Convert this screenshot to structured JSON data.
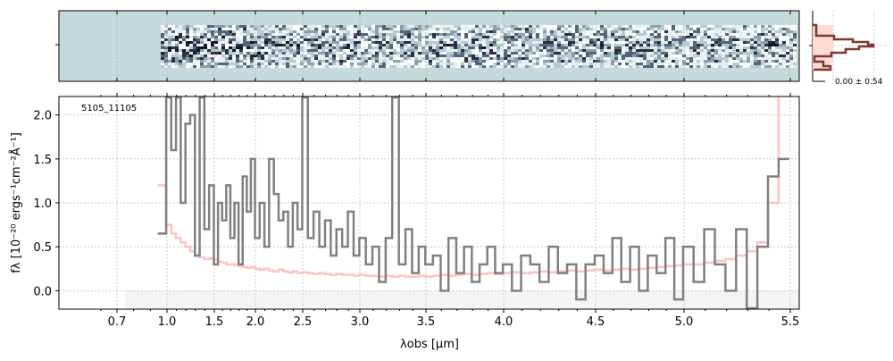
{
  "colors": {
    "flux": "#808080",
    "error": "#ffb3b3",
    "image_bg": "#c5dbdb",
    "hist_line": "#7a3b2e",
    "hist_fill": "#ffd7cc"
  },
  "image_panel": {
    "histogram_label": "0.00 ± 0.54"
  },
  "chart_data": {
    "type": "line",
    "title": "",
    "annotation": "5105_11105",
    "xlabel": "λobs [μm]",
    "ylabel": "fλ [10⁻²⁰ ergs⁻¹cm⁻²Å⁻¹]",
    "ylim": [
      -0.21,
      2.21
    ],
    "xlim": [
      0.5,
      5.52
    ],
    "grid": true,
    "x_ticks": [
      {
        "value": 0.7,
        "label": "0.7"
      },
      {
        "value": 1.0,
        "label": "1.0"
      },
      {
        "value": 1.5,
        "label": "1.5"
      },
      {
        "value": 2.0,
        "label": "2.0"
      },
      {
        "value": 2.5,
        "label": "2.5"
      },
      {
        "value": 3.0,
        "label": "3.0"
      },
      {
        "value": 3.5,
        "label": "3.5"
      },
      {
        "value": 4.0,
        "label": "4.0"
      },
      {
        "value": 4.5,
        "label": "4.5"
      },
      {
        "value": 5.0,
        "label": "5.0"
      },
      {
        "value": 5.5,
        "label": "5.5"
      }
    ],
    "y_ticks": [
      {
        "value": 0.0,
        "label": "0.0"
      },
      {
        "value": 0.5,
        "label": "0.5"
      },
      {
        "value": 1.0,
        "label": "1.0"
      },
      {
        "value": 1.5,
        "label": "1.5"
      },
      {
        "value": 2.0,
        "label": "2.0"
      }
    ],
    "shaded_region": {
      "x": [
        0.75,
        5.52
      ],
      "y": [
        -0.21,
        0.0
      ]
    },
    "x": [
      0.97,
      1.02,
      1.07,
      1.12,
      1.17,
      1.22,
      1.27,
      1.32,
      1.37,
      1.42,
      1.47,
      1.52,
      1.57,
      1.62,
      1.67,
      1.72,
      1.77,
      1.82,
      1.87,
      1.92,
      1.97,
      2.02,
      2.07,
      2.12,
      2.17,
      2.22,
      2.27,
      2.32,
      2.37,
      2.42,
      2.47,
      2.52,
      2.57,
      2.62,
      2.67,
      2.72,
      2.77,
      2.82,
      2.87,
      2.92,
      2.97,
      3.02,
      3.07,
      3.12,
      3.17,
      3.22,
      3.27,
      3.32,
      3.37,
      3.42,
      3.47,
      3.52,
      3.57,
      3.62,
      3.67,
      3.72,
      3.77,
      3.82,
      3.87,
      3.92,
      3.97,
      4.02,
      4.07,
      4.12,
      4.17,
      4.22,
      4.27,
      4.32,
      4.37,
      4.42,
      4.47,
      4.52,
      4.57,
      4.62,
      4.67,
      4.72,
      4.77,
      4.82,
      4.87,
      4.92,
      4.97,
      5.02,
      5.07,
      5.12,
      5.17,
      5.22,
      5.27,
      5.32,
      5.37,
      5.42,
      5.47
    ],
    "series": [
      {
        "name": "flux",
        "values": [
          0.65,
          2.2,
          1.6,
          2.2,
          1.0,
          1.9,
          2.0,
          0.4,
          2.2,
          0.7,
          1.2,
          0.3,
          1.0,
          0.8,
          1.2,
          0.6,
          1.0,
          0.3,
          1.3,
          0.9,
          1.5,
          0.6,
          1.0,
          0.5,
          1.5,
          1.1,
          0.8,
          0.9,
          0.5,
          1.0,
          0.7,
          2.2,
          0.6,
          0.9,
          0.5,
          0.8,
          0.4,
          0.7,
          0.5,
          0.9,
          0.4,
          0.6,
          0.3,
          0.5,
          0.1,
          0.6,
          2.2,
          0.3,
          0.7,
          0.2,
          0.5,
          0.3,
          0.4,
          0.0,
          0.6,
          0.2,
          0.5,
          0.1,
          0.3,
          0.5,
          0.2,
          0.3,
          0.0,
          0.4,
          0.3,
          0.1,
          0.5,
          0.2,
          0.3,
          -0.1,
          0.3,
          0.4,
          0.2,
          0.6,
          0.1,
          0.5,
          0.0,
          0.4,
          0.2,
          0.6,
          -0.1,
          0.5,
          0.1,
          0.7,
          0.3,
          0.0,
          0.7,
          -0.2,
          0.5,
          1.3,
          1.5
        ]
      },
      {
        "name": "error",
        "values": [
          1.2,
          0.75,
          0.65,
          0.6,
          0.55,
          0.5,
          0.45,
          0.4,
          0.38,
          0.36,
          0.37,
          0.35,
          0.33,
          0.32,
          0.3,
          0.3,
          0.29,
          0.28,
          0.27,
          0.26,
          0.27,
          0.25,
          0.24,
          0.25,
          0.23,
          0.22,
          0.24,
          0.22,
          0.21,
          0.22,
          0.2,
          0.21,
          0.2,
          0.19,
          0.2,
          0.19,
          0.18,
          0.19,
          0.18,
          0.18,
          0.17,
          0.18,
          0.17,
          0.17,
          0.16,
          0.17,
          0.16,
          0.17,
          0.16,
          0.16,
          0.17,
          0.16,
          0.17,
          0.18,
          0.17,
          0.18,
          0.19,
          0.18,
          0.19,
          0.2,
          0.19,
          0.2,
          0.21,
          0.2,
          0.21,
          0.22,
          0.21,
          0.22,
          0.23,
          0.22,
          0.23,
          0.24,
          0.23,
          0.24,
          0.25,
          0.24,
          0.25,
          0.26,
          0.27,
          0.28,
          0.29,
          0.3,
          0.3,
          0.32,
          0.34,
          0.36,
          0.4,
          0.45,
          0.55,
          1.0,
          2.3
        ]
      }
    ]
  }
}
